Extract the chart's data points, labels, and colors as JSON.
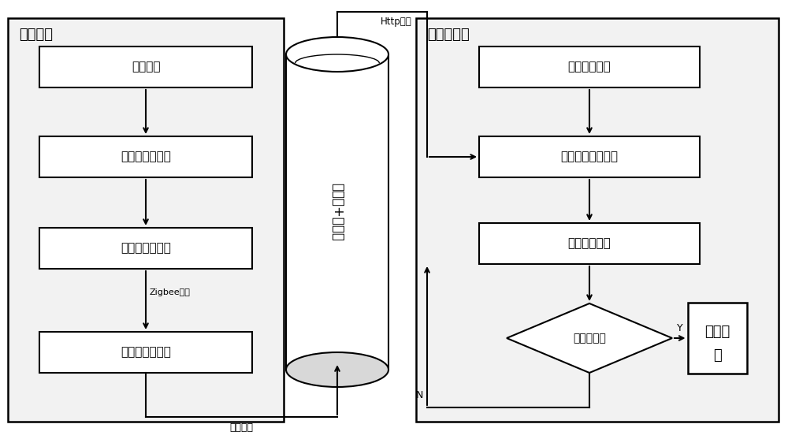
{
  "bg_color": "#ffffff",
  "section_fill": "#f0f0f0",
  "left_section_label": "支持硬件",
  "right_section_label": "客户端软件",
  "left_boxes": [
    "设备启动",
    "传感器采集数据",
    "处理器处理数据",
    "协调器接受数据"
  ],
  "right_boxes": [
    "客户端初始化",
    "向发送服务器请求",
    "接收数据显示"
  ],
  "diamond_label": "超过警戒值",
  "alert_line1": "手机报",
  "alert_line2": "警",
  "cylinder_label": "服务器+数据库",
  "zigbee_label": "Zigbee网络",
  "serial_label": "串口通信",
  "http_label": "Http请求",
  "yes_label": "Y",
  "no_label": "N"
}
